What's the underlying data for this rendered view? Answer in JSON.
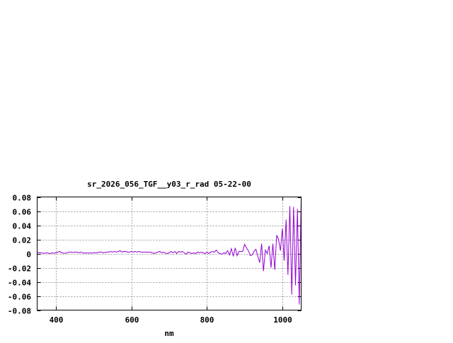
{
  "chart_data": {
    "type": "line",
    "title": "sr_2026_056_TGF__y03_r_rad 05-22-00",
    "xlabel": "nm",
    "ylabel": "",
    "xlim": [
      350,
      1050
    ],
    "ylim": [
      -0.08,
      0.08
    ],
    "grid": true,
    "xticks": [
      400,
      600,
      800,
      1000
    ],
    "xtick_labels": [
      "400",
      "600",
      "800",
      "1000"
    ],
    "yticks": [
      -0.08,
      -0.06,
      -0.04,
      -0.02,
      0,
      0.02,
      0.04,
      0.06,
      0.08
    ],
    "ytick_labels": [
      "-0.08",
      "-0.06",
      "-0.04",
      "-0.02",
      "0",
      "0.02",
      "0.04",
      "0.06",
      "0.08"
    ],
    "series": [
      {
        "color": "#9400d3",
        "x_start": 350,
        "x_step": 5,
        "values": [
          0.002,
          0.001,
          0.001,
          0.0005,
          0.0005,
          0.001,
          0.0005,
          0.0,
          0.001,
          0.0005,
          0.001,
          0.002,
          0.003,
          0.001,
          0.0005,
          0.0005,
          0.001,
          0.002,
          0.002,
          0.0015,
          0.002,
          0.002,
          0.001,
          0.002,
          0.001,
          0.0005,
          0.001,
          0.0005,
          0.001,
          0.0005,
          0.001,
          0.001,
          0.001,
          0.002,
          0.002,
          0.001,
          0.0015,
          0.002,
          0.002,
          0.003,
          0.002,
          0.003,
          0.002,
          0.003,
          0.004,
          0.002,
          0.003,
          0.003,
          0.002,
          0.002,
          0.003,
          0.002,
          0.003,
          0.002,
          0.003,
          0.002,
          0.002,
          0.002,
          0.002,
          0.002,
          0.002,
          0.001,
          0.0,
          0.001,
          0.002,
          0.003,
          0.001,
          0.002,
          0.0005,
          0.0,
          0.001,
          0.003,
          0.001,
          0.003,
          0.0,
          0.003,
          0.002,
          0.003,
          0.001,
          -0.001,
          0.002,
          0.001,
          0.0,
          0.001,
          0.0,
          0.002,
          0.001,
          0.002,
          0.001,
          0.0,
          0.002,
          0.0,
          0.002,
          0.003,
          0.002,
          0.005,
          0.001,
          0.0,
          -0.001,
          0.001,
          0.0,
          0.004,
          -0.002,
          0.007,
          -0.004,
          0.008,
          -0.003,
          0.003,
          0.003,
          0.003,
          0.013,
          0.008,
          0.004,
          -0.003,
          -0.002,
          0.003,
          0.006,
          -0.004,
          -0.013,
          0.014,
          -0.025,
          0.005,
          0.0,
          0.011,
          -0.02,
          0.014,
          -0.023,
          0.026,
          0.02,
          0.004,
          0.035,
          -0.01,
          0.048,
          -0.03,
          0.067,
          -0.058,
          0.066,
          -0.045,
          0.063,
          -0.072,
          0.078
        ]
      }
    ]
  }
}
